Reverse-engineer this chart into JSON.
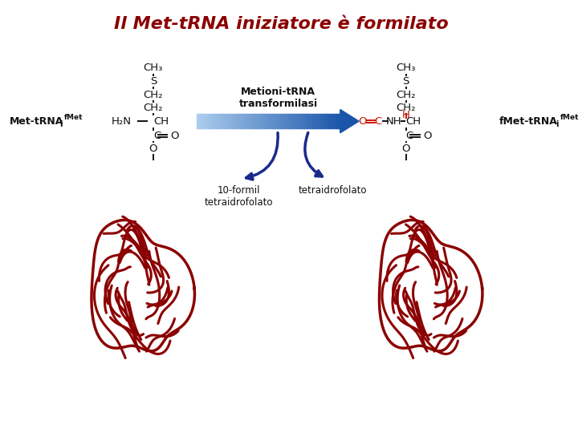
{
  "title": "Il Met-tRNA iniziatore è formilato",
  "title_color": "#8B0000",
  "title_fontsize": 16,
  "bg_color": "#FFFFFF",
  "dark_red": "#8B0000",
  "dark_blue": "#1a2a8c",
  "arrow_blue_dark": "#1a55aa",
  "arrow_blue_light": "#aaccee",
  "red_formula": "#CC1100",
  "black": "#111111",
  "enzyme_label": "Metioni-tRNA\ntransformilasi",
  "cosubstrate1": "10-formil\ntetraidrofolato",
  "cosubstrate2": "tetraidrofolato"
}
